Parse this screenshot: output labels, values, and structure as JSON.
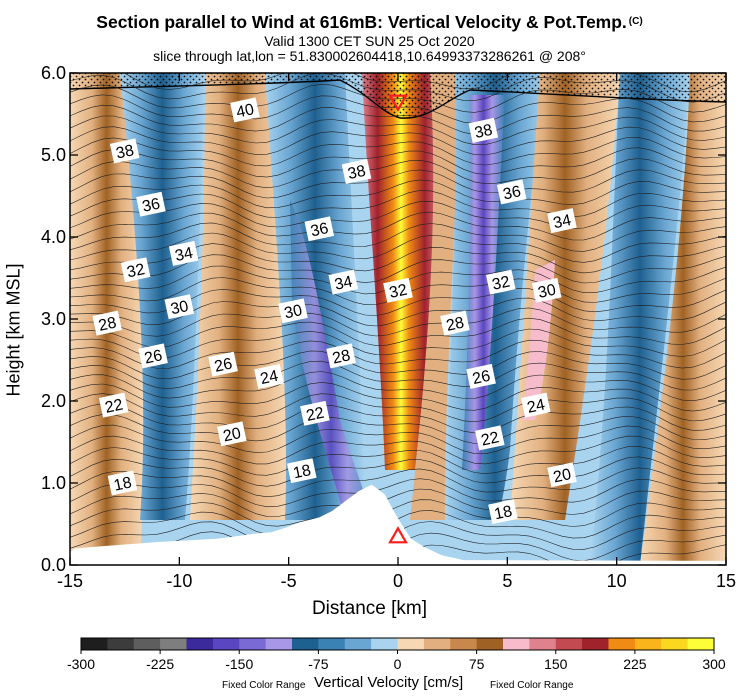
{
  "chart_data": {
    "type": "contour-cross-section",
    "title": "Section parallel to Wind at 616mB: Vertical Velocity & Pot.Temp.",
    "copyright_mark": "(C)",
    "subtitle_valid": "Valid 1300 CET SUN 25 Oct 2020",
    "subtitle_slice": "slice through lat,lon = 51.830002604418,10.64993373286261 @ 208°",
    "xlabel": "Distance [km]",
    "ylabel": "Height [km MSL]",
    "xlim": [
      -15,
      15
    ],
    "ylim": [
      0.0,
      6.0
    ],
    "x_ticks": [
      -15,
      -10,
      -5,
      0,
      5,
      10,
      15
    ],
    "x_tick_labels": [
      "-15",
      "-10",
      "-5",
      "0",
      "5",
      "10",
      "15"
    ],
    "y_ticks": [
      0.0,
      1.0,
      2.0,
      3.0,
      4.0,
      5.0,
      6.0
    ],
    "y_tick_labels": [
      "0.0",
      "1.0",
      "2.0",
      "3.0",
      "4.0",
      "5.0",
      "6.0"
    ],
    "colorbar": {
      "title": "Vertical Velocity [cm/s]",
      "note_left": "Fixed Color Range",
      "note_right": "Fixed Color Range",
      "labels": [
        "-300",
        "-225",
        "-150",
        "-75",
        "0",
        "75",
        "150",
        "225",
        "300"
      ],
      "label_values": [
        -300,
        -225,
        -150,
        -75,
        0,
        75,
        150,
        225,
        300
      ],
      "colors": [
        "#1e1e1e",
        "#3c3c3c",
        "#5e5e5e",
        "#7e7e7e",
        "#3a2a9c",
        "#5a46c0",
        "#7a6ad6",
        "#a896e6",
        "#1e6090",
        "#3a82b4",
        "#6aa6d2",
        "#a8d4f0",
        "#f6d8b4",
        "#e2b080",
        "#c8884c",
        "#a06224",
        "#f6bccb",
        "#e0828e",
        "#c44a52",
        "#a0222c",
        "#f08c14",
        "#f8b41a",
        "#fad820",
        "#fefe38"
      ]
    },
    "theta_contour_labels": [
      {
        "text": "40",
        "x": -7.0,
        "y": 5.55
      },
      {
        "text": "38",
        "x": -12.5,
        "y": 5.05
      },
      {
        "text": "38",
        "x": -1.9,
        "y": 4.8
      },
      {
        "text": "38",
        "x": 3.9,
        "y": 5.3
      },
      {
        "text": "36",
        "x": -11.3,
        "y": 4.4
      },
      {
        "text": "36",
        "x": -3.6,
        "y": 4.1
      },
      {
        "text": "36",
        "x": 5.2,
        "y": 4.55
      },
      {
        "text": "34",
        "x": -9.8,
        "y": 3.8
      },
      {
        "text": "34",
        "x": -2.5,
        "y": 3.45
      },
      {
        "text": "34",
        "x": 7.5,
        "y": 4.2
      },
      {
        "text": "32",
        "x": -12.0,
        "y": 3.6
      },
      {
        "text": "32",
        "x": 0.0,
        "y": 3.35
      },
      {
        "text": "32",
        "x": 4.7,
        "y": 3.45
      },
      {
        "text": "30",
        "x": -10.0,
        "y": 3.15
      },
      {
        "text": "30",
        "x": -4.8,
        "y": 3.1
      },
      {
        "text": "30",
        "x": 6.8,
        "y": 3.35
      },
      {
        "text": "28",
        "x": -13.3,
        "y": 2.95
      },
      {
        "text": "28",
        "x": -2.6,
        "y": 2.55
      },
      {
        "text": "28",
        "x": 2.6,
        "y": 2.95
      },
      {
        "text": "26",
        "x": -11.2,
        "y": 2.55
      },
      {
        "text": "26",
        "x": -8.0,
        "y": 2.45
      },
      {
        "text": "26",
        "x": 3.8,
        "y": 2.3
      },
      {
        "text": "24",
        "x": -5.9,
        "y": 2.3
      },
      {
        "text": "24",
        "x": 6.3,
        "y": 1.95
      },
      {
        "text": "22",
        "x": -13.0,
        "y": 1.95
      },
      {
        "text": "22",
        "x": -3.8,
        "y": 1.85
      },
      {
        "text": "22",
        "x": 4.2,
        "y": 1.55
      },
      {
        "text": "20",
        "x": -7.6,
        "y": 1.6
      },
      {
        "text": "20",
        "x": 7.5,
        "y": 1.1
      },
      {
        "text": "18",
        "x": -12.6,
        "y": 1.0
      },
      {
        "text": "18",
        "x": -4.4,
        "y": 1.15
      },
      {
        "text": "18",
        "x": 4.8,
        "y": 0.65
      }
    ],
    "markers": [
      {
        "shape": "triangle-up",
        "x": 0.0,
        "y": 0.35,
        "color": "#ff1c1c"
      },
      {
        "shape": "triangle-down",
        "x": 0.0,
        "y": 5.65,
        "color": "#ff1c1c"
      }
    ],
    "terrain_profile_x": [
      -15,
      -14.8,
      -14,
      -12.5,
      -11,
      -9.6,
      -8.3,
      -7.4,
      -6.6,
      -5.8,
      -5.2,
      -4.5,
      -3.6,
      -3.0,
      -2.4,
      -1.8,
      -1.2,
      -0.6,
      -0.2,
      0.2,
      0.6,
      1.2,
      2.0,
      3.0,
      15
    ],
    "terrain_profile_h": [
      0.15,
      0.2,
      0.22,
      0.25,
      0.28,
      0.3,
      0.32,
      0.35,
      0.38,
      0.4,
      0.45,
      0.52,
      0.58,
      0.66,
      0.78,
      0.9,
      0.98,
      0.86,
      0.66,
      0.48,
      0.32,
      0.22,
      0.12,
      0.06,
      0.05
    ]
  }
}
